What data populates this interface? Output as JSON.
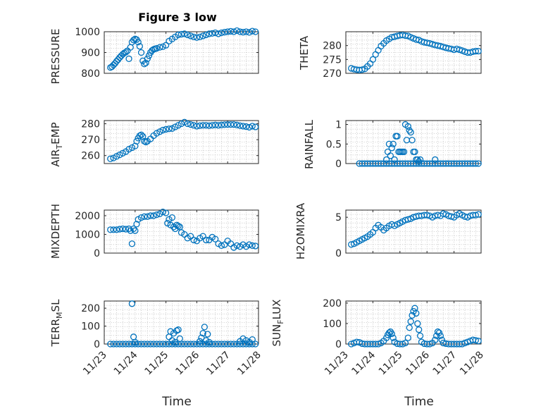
{
  "figure_title": "Figure 3 low",
  "marker_color": "#0072bd",
  "chart_data": [
    {
      "type": "scatter",
      "ylabel": "PRESSURE",
      "title": "Figure 3 low",
      "ylim": [
        800,
        1000
      ],
      "yticks": [
        800,
        900,
        1000
      ],
      "xlim": [
        0,
        5
      ],
      "xticks": [],
      "x": [
        0.2,
        0.25,
        0.3,
        0.35,
        0.4,
        0.45,
        0.5,
        0.55,
        0.6,
        0.65,
        0.7,
        0.75,
        0.8,
        0.85,
        0.9,
        0.95,
        1.0,
        1.05,
        1.1,
        1.15,
        1.2,
        1.25,
        1.3,
        1.35,
        1.4,
        1.45,
        1.5,
        1.55,
        1.6,
        1.65,
        1.7,
        1.8,
        1.9,
        2.0,
        2.1,
        2.2,
        2.3,
        2.4,
        2.5,
        2.6,
        2.7,
        2.8,
        2.9,
        3.0,
        3.1,
        3.2,
        3.3,
        3.4,
        3.5,
        3.6,
        3.7,
        3.8,
        3.9,
        4.0,
        4.1,
        4.2,
        4.3,
        4.4,
        4.5,
        4.6,
        4.7,
        4.8,
        4.9
      ],
      "y": [
        828,
        832,
        840,
        848,
        858,
        866,
        876,
        884,
        892,
        898,
        902,
        908,
        870,
        925,
        950,
        960,
        965,
        962,
        950,
        930,
        900,
        860,
        845,
        850,
        870,
        885,
        900,
        910,
        915,
        918,
        920,
        925,
        928,
        935,
        955,
        965,
        975,
        985,
        988,
        990,
        985,
        980,
        975,
        972,
        975,
        980,
        985,
        990,
        992,
        995,
        990,
        995,
        998,
        1000,
        1002,
        1000,
        1005,
        1000,
        998,
        1000,
        997,
        1003,
        1000
      ]
    },
    {
      "type": "scatter",
      "ylabel": "THETA",
      "ylim": [
        270,
        285
      ],
      "yticks": [
        270,
        275,
        280
      ],
      "xlim": [
        0,
        5
      ],
      "xticks": [],
      "x": [
        0.2,
        0.3,
        0.4,
        0.5,
        0.6,
        0.7,
        0.8,
        0.9,
        1.0,
        1.1,
        1.2,
        1.3,
        1.4,
        1.5,
        1.6,
        1.7,
        1.8,
        1.9,
        2.0,
        2.1,
        2.2,
        2.3,
        2.4,
        2.5,
        2.6,
        2.7,
        2.8,
        2.9,
        3.0,
        3.1,
        3.2,
        3.3,
        3.4,
        3.5,
        3.6,
        3.7,
        3.8,
        3.9,
        4.0,
        4.1,
        4.2,
        4.3,
        4.4,
        4.5,
        4.6,
        4.7,
        4.8,
        4.9
      ],
      "y": [
        271.8,
        271.5,
        271.3,
        271.2,
        271.3,
        271.6,
        272.5,
        273.5,
        275,
        276.8,
        278.3,
        279.8,
        280.8,
        281.8,
        282.4,
        283,
        283.2,
        283.5,
        283.7,
        283.8,
        283.6,
        283.5,
        283.0,
        282.6,
        282.2,
        282.0,
        281.5,
        281.2,
        281.0,
        280.8,
        280.5,
        280.2,
        280.0,
        279.8,
        279.5,
        279.2,
        279.0,
        278.8,
        278.5,
        278.8,
        278.5,
        278.2,
        277.8,
        277.5,
        277.5,
        277.8,
        278.0,
        278.0
      ]
    },
    {
      "type": "scatter",
      "ylabel": "AIR_TEMP",
      "ylim": [
        255,
        282
      ],
      "yticks": [
        260,
        270,
        280
      ],
      "xlim": [
        0,
        5
      ],
      "xticks": [],
      "x": [
        0.2,
        0.3,
        0.4,
        0.5,
        0.6,
        0.7,
        0.8,
        0.9,
        1.0,
        1.05,
        1.1,
        1.15,
        1.2,
        1.25,
        1.3,
        1.35,
        1.4,
        1.5,
        1.6,
        1.7,
        1.8,
        1.9,
        2.0,
        2.1,
        2.2,
        2.3,
        2.4,
        2.5,
        2.6,
        2.7,
        2.8,
        2.9,
        3.0,
        3.1,
        3.2,
        3.3,
        3.4,
        3.5,
        3.6,
        3.7,
        3.8,
        3.9,
        4.0,
        4.1,
        4.2,
        4.3,
        4.4,
        4.5,
        4.6,
        4.7,
        4.8,
        4.9
      ],
      "y": [
        258,
        258.5,
        259.5,
        260.5,
        261.5,
        262.5,
        264,
        265,
        266,
        269,
        271,
        272.5,
        273,
        272,
        269,
        268.5,
        269,
        270.5,
        272.5,
        274,
        275,
        276,
        276.5,
        276.8,
        277,
        278,
        279,
        280,
        281,
        280,
        279.5,
        279,
        278.5,
        278.8,
        279,
        279,
        278.8,
        279,
        279.2,
        279,
        279.2,
        279.4,
        279.5,
        279.5,
        279.5,
        279.2,
        278.8,
        278.5,
        278.2,
        277.8,
        278.5,
        278
      ]
    },
    {
      "type": "scatter",
      "ylabel": "RAINFALL",
      "ylim": [
        0,
        1.1
      ],
      "yticks": [
        0,
        0.5,
        1
      ],
      "xlim": [
        0,
        5
      ],
      "xticks": [],
      "x": [
        0.5,
        0.6,
        0.7,
        0.8,
        0.9,
        1.0,
        1.1,
        1.2,
        1.3,
        1.4,
        1.5,
        1.6,
        1.7,
        1.8,
        1.9,
        2.0,
        2.1,
        2.2,
        2.3,
        2.4,
        2.5,
        2.6,
        2.7,
        2.8,
        2.9,
        3.0,
        3.1,
        3.2,
        3.3,
        3.4,
        3.5,
        3.6,
        3.7,
        3.8,
        3.9,
        4.0,
        4.1,
        4.2,
        4.3,
        4.4,
        4.5,
        4.6,
        4.7,
        4.8,
        4.9,
        1.5,
        1.55,
        1.6,
        1.65,
        1.7,
        1.75,
        1.8,
        1.85,
        1.9,
        1.95,
        2.0,
        2.05,
        2.1,
        2.15,
        2.2,
        2.25,
        2.3,
        2.35,
        2.4,
        2.45,
        2.5,
        2.55,
        2.6,
        2.65,
        2.7,
        2.75,
        3.3
      ],
      "y": [
        0,
        0,
        0,
        0,
        0,
        0,
        0,
        0,
        0,
        0,
        0,
        0,
        0,
        0,
        0,
        0,
        0,
        0,
        0,
        0,
        0,
        0,
        0,
        0,
        0,
        0,
        0,
        0,
        0,
        0,
        0,
        0,
        0,
        0,
        0,
        0,
        0,
        0,
        0,
        0,
        0,
        0,
        0,
        0,
        0,
        0.1,
        0.3,
        0.5,
        0.2,
        0.4,
        0.5,
        0.1,
        0.7,
        0.7,
        0.3,
        0.3,
        0.3,
        0.3,
        0.3,
        1.0,
        0.6,
        0.95,
        0.85,
        0.8,
        0.6,
        0.3,
        0.3,
        0.1,
        0.1,
        0.05,
        0.1,
        0.1
      ]
    },
    {
      "type": "scatter",
      "ylabel": "MIXDEPTH",
      "ylim": [
        0,
        2300
      ],
      "yticks": [
        0,
        1000,
        2000
      ],
      "xlim": [
        0,
        5
      ],
      "xticks": [],
      "x": [
        0.2,
        0.3,
        0.4,
        0.5,
        0.6,
        0.7,
        0.8,
        0.85,
        0.9,
        0.95,
        1.0,
        1.05,
        1.1,
        1.2,
        1.3,
        1.4,
        1.5,
        1.6,
        1.7,
        1.8,
        1.9,
        2.0,
        2.05,
        2.1,
        2.15,
        2.2,
        2.25,
        2.3,
        2.35,
        2.4,
        2.45,
        2.5,
        2.6,
        2.7,
        2.8,
        2.9,
        3.0,
        3.1,
        3.2,
        3.3,
        3.4,
        3.5,
        3.6,
        3.7,
        3.8,
        3.9,
        4.0,
        4.1,
        4.2,
        4.3,
        4.4,
        4.5,
        4.6,
        4.7,
        4.8,
        4.9
      ],
      "y": [
        1250,
        1250,
        1250,
        1280,
        1300,
        1280,
        1300,
        1200,
        500,
        1300,
        1200,
        1550,
        1800,
        1900,
        1950,
        1950,
        2000,
        2000,
        2050,
        2100,
        2200,
        2150,
        1600,
        1800,
        1500,
        1900,
        1400,
        1300,
        1500,
        1450,
        1400,
        1100,
        1000,
        800,
        900,
        700,
        650,
        800,
        900,
        700,
        700,
        850,
        750,
        500,
        400,
        450,
        650,
        500,
        300,
        400,
        350,
        450,
        350,
        450,
        400,
        380
      ]
    },
    {
      "type": "scatter",
      "ylabel": "H2OMIXRA",
      "ylim": [
        0,
        6
      ],
      "yticks": [
        0,
        5
      ],
      "xlim": [
        0,
        5
      ],
      "xticks": [],
      "x": [
        0.2,
        0.3,
        0.4,
        0.5,
        0.6,
        0.7,
        0.8,
        0.9,
        1.0,
        1.1,
        1.2,
        1.3,
        1.4,
        1.5,
        1.6,
        1.7,
        1.8,
        1.9,
        2.0,
        2.1,
        2.2,
        2.3,
        2.4,
        2.5,
        2.6,
        2.7,
        2.8,
        2.9,
        3.0,
        3.1,
        3.2,
        3.3,
        3.4,
        3.5,
        3.6,
        3.7,
        3.8,
        3.9,
        4.0,
        4.1,
        4.2,
        4.3,
        4.4,
        4.5,
        4.6,
        4.7,
        4.8,
        4.9
      ],
      "y": [
        1.2,
        1.3,
        1.5,
        1.7,
        1.9,
        2.1,
        2.3,
        2.6,
        2.9,
        3.5,
        3.9,
        3.6,
        3.2,
        3.5,
        3.8,
        4.0,
        3.8,
        4.0,
        4.2,
        4.4,
        4.6,
        4.7,
        4.8,
        5.0,
        5.1,
        5.2,
        5.2,
        5.3,
        5.3,
        5.2,
        5.0,
        5.2,
        5.3,
        5.2,
        5.5,
        5.4,
        5.2,
        5.1,
        5.0,
        5.3,
        5.5,
        5.3,
        5.1,
        5.0,
        5.2,
        5.3,
        5.3,
        5.4
      ]
    },
    {
      "type": "scatter",
      "ylabel": "TERR_MSL",
      "ylim": [
        0,
        240
      ],
      "yticks": [
        0,
        100,
        200
      ],
      "xlim": [
        0,
        5
      ],
      "xticks": [
        "11/23",
        "11/24",
        "11/25",
        "11/26",
        "11/27",
        "11/28"
      ],
      "xlabel": "Time",
      "x": [
        0.2,
        0.3,
        0.4,
        0.5,
        0.6,
        0.7,
        0.8,
        0.9,
        1.0,
        1.1,
        1.2,
        1.3,
        1.4,
        1.5,
        1.6,
        1.7,
        1.8,
        1.9,
        2.0,
        2.1,
        2.2,
        2.3,
        2.4,
        2.5,
        2.6,
        2.7,
        2.8,
        2.9,
        3.0,
        3.1,
        3.2,
        3.3,
        3.4,
        3.5,
        3.6,
        3.7,
        3.8,
        3.9,
        4.0,
        4.1,
        4.2,
        4.3,
        4.4,
        4.5,
        4.6,
        4.7,
        4.8,
        4.9,
        0.9,
        0.95,
        1.0,
        2.1,
        2.15,
        2.2,
        2.25,
        2.3,
        2.35,
        2.4,
        2.45,
        3.1,
        3.15,
        3.2,
        3.25,
        3.3,
        3.35,
        3.4,
        4.4,
        4.5,
        4.6,
        4.7,
        4.8
      ],
      "y": [
        0,
        0,
        0,
        0,
        0,
        0,
        0,
        0,
        0,
        0,
        0,
        0,
        0,
        0,
        0,
        0,
        0,
        0,
        0,
        0,
        0,
        0,
        0,
        0,
        0,
        0,
        0,
        0,
        0,
        0,
        0,
        0,
        0,
        0,
        0,
        0,
        0,
        0,
        0,
        0,
        0,
        0,
        0,
        0,
        0,
        0,
        0,
        0,
        225,
        40,
        10,
        40,
        70,
        20,
        60,
        10,
        75,
        80,
        30,
        15,
        35,
        60,
        95,
        20,
        55,
        10,
        15,
        30,
        20,
        10,
        25
      ]
    },
    {
      "type": "scatter",
      "ylabel": "SUN_FLUX",
      "ylim": [
        0,
        210
      ],
      "yticks": [
        0,
        100,
        200
      ],
      "xlim": [
        0,
        5
      ],
      "xticks": [
        "11/23",
        "11/24",
        "11/25",
        "11/26",
        "11/27",
        "11/28"
      ],
      "xlabel": "Time",
      "x": [
        0.2,
        0.3,
        0.4,
        0.5,
        0.6,
        0.7,
        0.8,
        0.9,
        1.0,
        1.1,
        1.2,
        1.3,
        1.4,
        1.5,
        1.55,
        1.6,
        1.65,
        1.7,
        1.75,
        1.8,
        1.9,
        2.0,
        2.1,
        2.2,
        2.3,
        2.35,
        2.4,
        2.45,
        2.5,
        2.55,
        2.6,
        2.65,
        2.7,
        2.75,
        2.8,
        2.9,
        3.0,
        3.1,
        3.2,
        3.3,
        3.35,
        3.4,
        3.45,
        3.5,
        3.55,
        3.6,
        3.7,
        3.8,
        3.9,
        4.0,
        4.1,
        4.2,
        4.3,
        4.4,
        4.5,
        4.6,
        4.7,
        4.8,
        4.9
      ],
      "y": [
        0,
        5,
        10,
        8,
        2,
        0,
        0,
        0,
        0,
        0,
        0,
        5,
        15,
        30,
        45,
        55,
        60,
        50,
        30,
        10,
        2,
        0,
        0,
        5,
        30,
        80,
        110,
        140,
        160,
        175,
        150,
        100,
        70,
        40,
        10,
        2,
        0,
        0,
        5,
        20,
        40,
        60,
        55,
        40,
        20,
        5,
        2,
        0,
        0,
        0,
        0,
        0,
        0,
        5,
        10,
        15,
        20,
        18,
        15
      ]
    }
  ]
}
